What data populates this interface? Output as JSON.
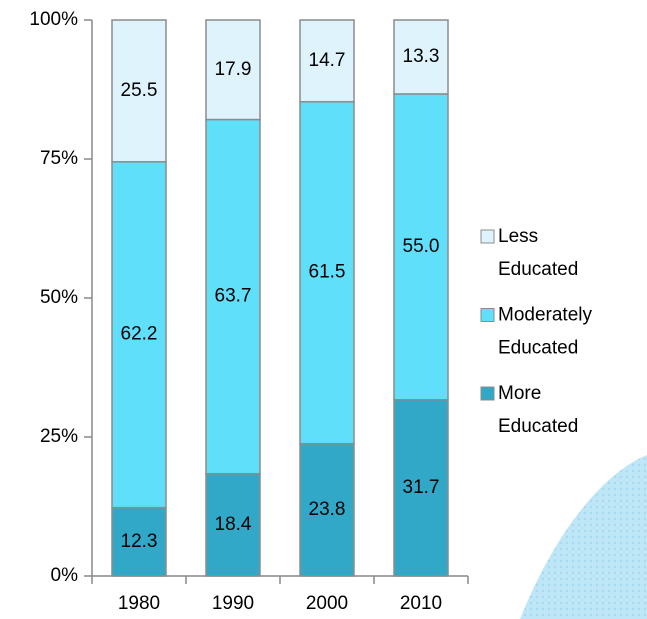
{
  "chart_data": {
    "type": "stacked_bar",
    "categories": [
      "1980",
      "1990",
      "2000",
      "2010"
    ],
    "series": [
      {
        "name": "More Educated",
        "color": "#31a8c8",
        "values": [
          12.3,
          18.4,
          23.8,
          31.7
        ],
        "value_labels": [
          "12.3",
          "18.4",
          "23.8",
          "31.7"
        ]
      },
      {
        "name": "Moderately Educated",
        "color": "#5fdff9",
        "values": [
          62.2,
          63.7,
          61.5,
          55.0
        ],
        "value_labels": [
          "62.2",
          "63.7",
          "61.5",
          "55.0"
        ]
      },
      {
        "name": "Less Educated",
        "color": "#dff3fd",
        "values": [
          25.5,
          17.9,
          14.7,
          13.3
        ],
        "value_labels": [
          "25.5",
          "17.9",
          "14.7",
          "13.3"
        ]
      }
    ],
    "ylim": [
      0,
      100
    ],
    "yticks": [
      {
        "value": 0,
        "label": "0%"
      },
      {
        "value": 25,
        "label": "25%"
      },
      {
        "value": 50,
        "label": "50%"
      },
      {
        "value": 75,
        "label": "75%"
      },
      {
        "value": 100,
        "label": "100%"
      }
    ],
    "legend": "right"
  }
}
